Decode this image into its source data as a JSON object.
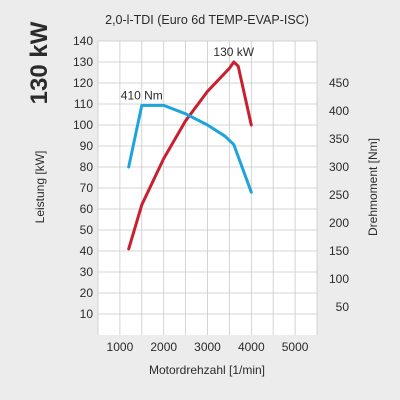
{
  "chart_data": {
    "type": "line",
    "big_label": "130 kW",
    "title": "2,0-l-TDI (Euro 6d TEMP-EVAP-ISC)",
    "xlabel": "Motordrehzahl [1/min]",
    "ylabel_left": "Leistung [kW]",
    "ylabel_right": "Drehmoment [Nm]",
    "xlim": [
      500,
      5500
    ],
    "ylim_left": [
      0,
      140
    ],
    "ylim_right": [
      0,
      525
    ],
    "grid": true,
    "x_ticks": [
      1000,
      2000,
      3000,
      4000,
      5000
    ],
    "y_left_ticks": [
      10,
      20,
      30,
      40,
      50,
      60,
      70,
      80,
      90,
      100,
      110,
      120,
      130,
      140
    ],
    "y_right_ticks": [
      50,
      100,
      150,
      200,
      250,
      300,
      350,
      400,
      450
    ],
    "series": [
      {
        "name": "Leistung",
        "axis": "left",
        "color": "#c8202f",
        "x": [
          1200,
          1500,
          2000,
          2500,
          3000,
          3500,
          3600,
          3700,
          4000
        ],
        "y": [
          41,
          62,
          84,
          102,
          116,
          127,
          130,
          128,
          100
        ],
        "annotation": {
          "text": "130 kW",
          "x": 3600,
          "y": 130
        }
      },
      {
        "name": "Drehmoment",
        "axis": "right",
        "color": "#1fa3dc",
        "x": [
          1200,
          1500,
          2000,
          2500,
          3000,
          3400,
          3600,
          4000
        ],
        "y": [
          300,
          410,
          410,
          395,
          375,
          355,
          340,
          255
        ],
        "annotation": {
          "text": "410 Nm",
          "x": 1500,
          "y": 410
        }
      }
    ]
  }
}
